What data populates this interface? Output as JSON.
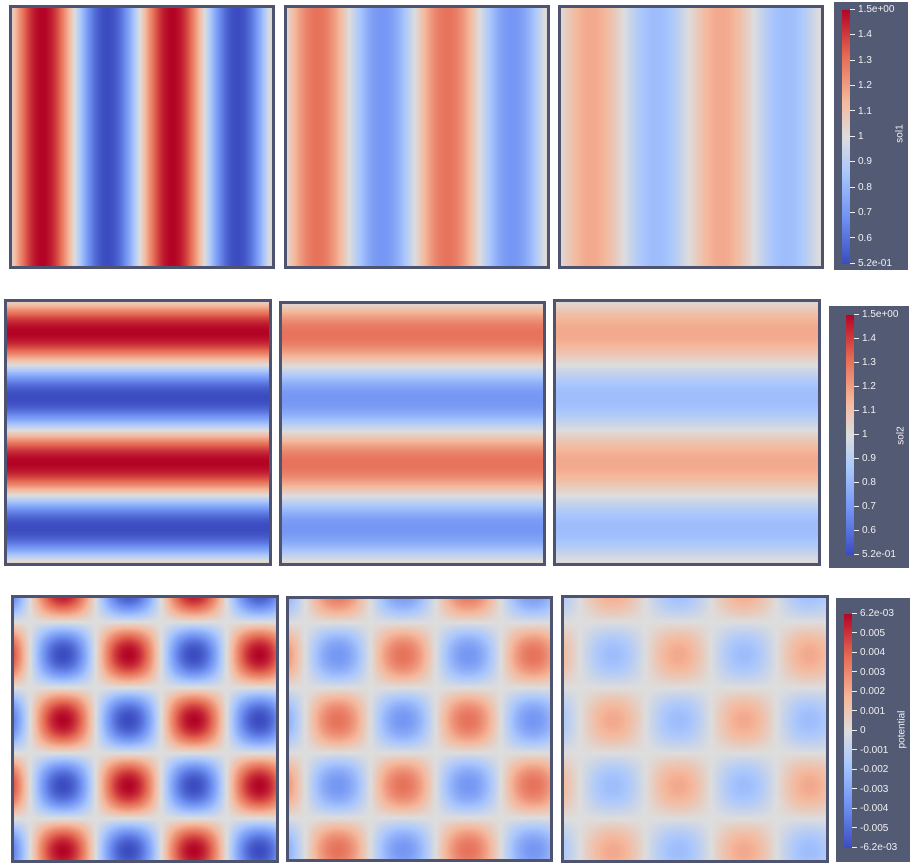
{
  "rows": [
    {
      "name": "sol1",
      "pattern": "vertical",
      "panels": [
        {
          "intensity": 1.0
        },
        {
          "intensity": 0.6
        },
        {
          "intensity": 0.35
        }
      ],
      "colorbar": {
        "title": "sol1",
        "ticks": [
          "1.5e+00",
          "1.4",
          "1.3",
          "1.2",
          "1.1",
          "1",
          "0.9",
          "0.8",
          "0.7",
          "0.6",
          "5.2e-01"
        ]
      }
    },
    {
      "name": "sol2",
      "pattern": "horizontal",
      "panels": [
        {
          "intensity": 1.0
        },
        {
          "intensity": 0.6
        },
        {
          "intensity": 0.35
        }
      ],
      "colorbar": {
        "title": "sol2",
        "ticks": [
          "1.5e+00",
          "1.4",
          "1.3",
          "1.2",
          "1.1",
          "1",
          "0.9",
          "0.8",
          "0.7",
          "0.6",
          "5.2e-01"
        ]
      }
    },
    {
      "name": "potential",
      "pattern": "checker",
      "panels": [
        {
          "intensity": 1.0
        },
        {
          "intensity": 0.6
        },
        {
          "intensity": 0.35
        }
      ],
      "colorbar": {
        "title": "potential",
        "ticks": [
          "6.2e-03",
          "0.005",
          "0.004",
          "0.003",
          "0.002",
          "0.001",
          "0",
          "-0.001",
          "-0.002",
          "-0.003",
          "-0.004",
          "-0.005",
          "-6.2e-03"
        ]
      }
    }
  ],
  "colors": {
    "cold": "#3b4cc0",
    "neutral": "#dddddd",
    "hot": "#b40426",
    "frame": "#4e5470",
    "colorbar_bg": "#535a74"
  }
}
